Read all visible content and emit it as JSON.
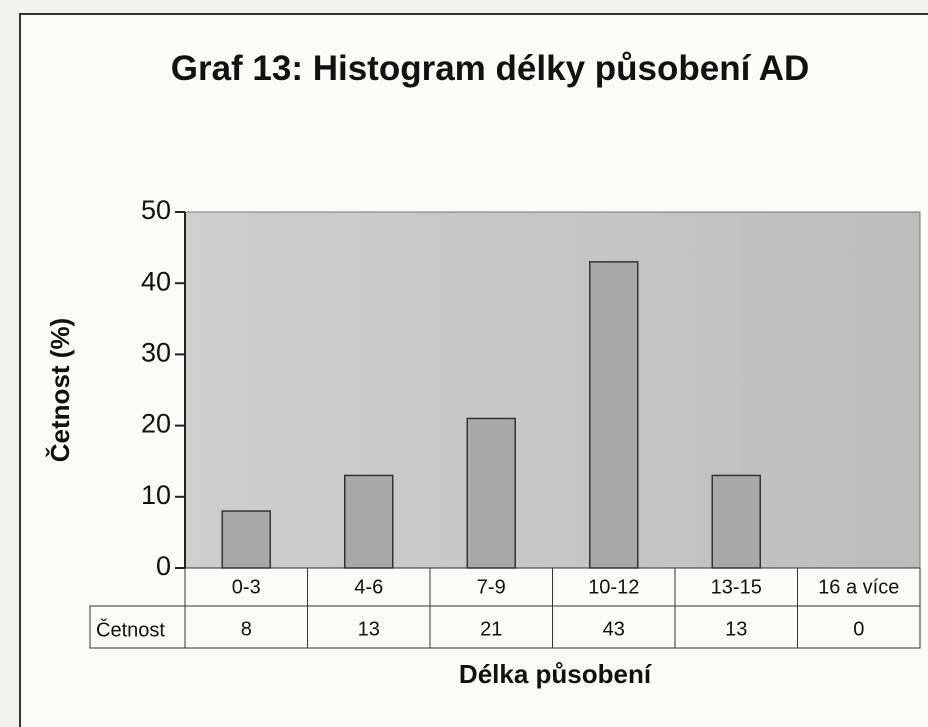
{
  "chart_data": {
    "type": "bar",
    "title": "Graf 13: Histogram délky působení AD",
    "categories": [
      "0-3",
      "4-6",
      "7-9",
      "10-12",
      "13-15",
      "16 a více"
    ],
    "values": [
      8,
      13,
      21,
      43,
      13,
      0
    ],
    "color": "#a9a9a9",
    "ylim": [
      0,
      50
    ],
    "yticks": [
      0,
      10,
      20,
      30,
      40,
      50
    ],
    "y_label": "Četnost (%)",
    "x_label": "Délka působení",
    "table_row_label": "Četnost"
  }
}
